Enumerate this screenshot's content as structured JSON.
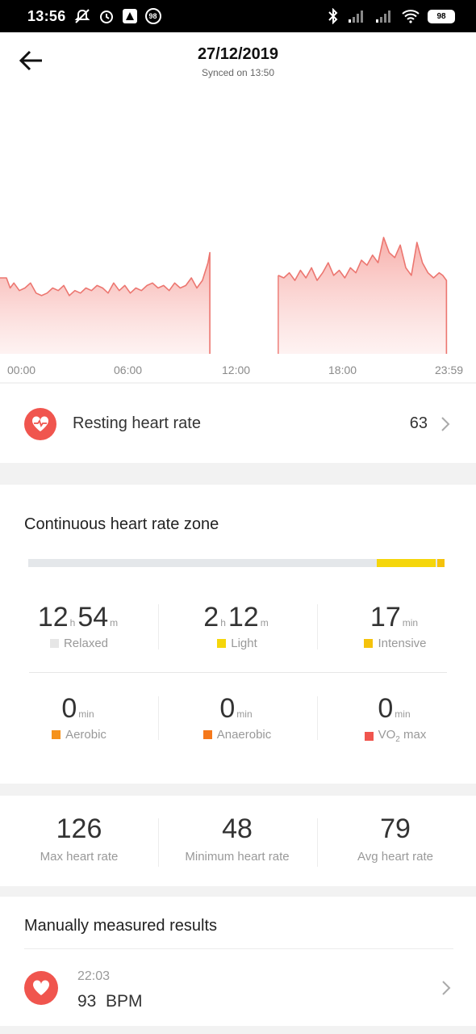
{
  "status_bar": {
    "time": "13:56",
    "notification_badge": "98",
    "battery": "98",
    "icons": [
      "muted-bell-icon",
      "alarm-icon",
      "app-icon",
      "bluetooth-icon",
      "signal-icon",
      "signal-icon",
      "wifi-icon",
      "battery-icon"
    ]
  },
  "header": {
    "title": "27/12/2019",
    "subtitle": "Synced on 13:50"
  },
  "chart_data": {
    "type": "area",
    "title": "",
    "xlabel": "",
    "ylabel": "",
    "x_tick_labels": [
      "00:00",
      "06:00",
      "12:00",
      "18:00",
      "23:59"
    ],
    "color": "#ec7670",
    "note_gap": "no data between ~11:10 and ~13:40",
    "series": [
      {
        "segment": 1,
        "x_hours": [
          0.0,
          0.2,
          0.4,
          0.7,
          1.0,
          1.3,
          1.6,
          1.9,
          2.2,
          2.5,
          2.8,
          3.1,
          3.4,
          3.7,
          4.0,
          4.3,
          4.6,
          4.9,
          5.2,
          5.5,
          5.8,
          6.1,
          6.4,
          6.7,
          7.0,
          7.3,
          7.6,
          7.9,
          8.2,
          8.5,
          8.8,
          9.1,
          9.4,
          9.7,
          10.0,
          10.3,
          10.6,
          10.9,
          11.0
        ],
        "bpm": [
          70,
          66,
          68,
          65,
          66,
          68,
          64,
          63,
          64,
          66,
          65,
          67,
          63,
          65,
          64,
          66,
          65,
          67,
          66,
          64,
          68,
          65,
          67,
          64,
          66,
          65,
          67,
          68,
          66,
          67,
          65,
          68,
          66,
          67,
          70,
          66,
          69,
          76,
          80
        ]
      },
      {
        "segment": 2,
        "x_hours": [
          14.7,
          15.0,
          15.3,
          15.6,
          15.9,
          16.2,
          16.5,
          16.8,
          17.1,
          17.4,
          17.7,
          18.0,
          18.3,
          18.6,
          18.9,
          19.2,
          19.5,
          19.8,
          20.1,
          20.4,
          20.7,
          21.0,
          21.3,
          21.6,
          21.9,
          22.2,
          22.5,
          22.8,
          23.1,
          23.4,
          23.6,
          23.8
        ],
        "bpm": [
          71,
          70,
          72,
          69,
          73,
          70,
          74,
          69,
          72,
          76,
          71,
          73,
          70,
          74,
          72,
          77,
          75,
          79,
          76,
          86,
          80,
          78,
          83,
          74,
          71,
          84,
          76,
          72,
          70,
          72,
          71,
          69
        ]
      }
    ]
  },
  "resting": {
    "label": "Resting heart rate",
    "value": "63"
  },
  "zones": {
    "title": "Continuous heart rate zone",
    "bar_fractions": {
      "relaxed": 0.84,
      "light": 0.14,
      "intensive": 0.02
    },
    "colors": {
      "relaxed": "#e6e6e6",
      "light": "#f5d60b",
      "intensive": "#f5c20b",
      "aerobic": "#f5921b",
      "anaerobic": "#f5781b",
      "vo2": "#f0554e"
    },
    "items": [
      {
        "v1": "12",
        "u1": "h",
        "v2": "54",
        "u2": "m",
        "label": "Relaxed"
      },
      {
        "v1": "2",
        "u1": "h",
        "v2": "12",
        "u2": "m",
        "label": "Light"
      },
      {
        "v1": "17",
        "u1": "min",
        "label": "Intensive"
      },
      {
        "v1": "0",
        "u1": "min",
        "label": "Aerobic"
      },
      {
        "v1": "0",
        "u1": "min",
        "label": "Anaerobic"
      },
      {
        "v1": "0",
        "u1": "min",
        "label_main": "VO",
        "label_sub": "2",
        "label_tail": " max"
      }
    ]
  },
  "stats": {
    "items": [
      {
        "value": "126",
        "label": "Max heart rate"
      },
      {
        "value": "48",
        "label": "Minimum heart rate"
      },
      {
        "value": "79",
        "label": "Avg heart rate"
      }
    ]
  },
  "manual": {
    "title": "Manually measured results",
    "time": "22:03",
    "value": "93  BPM"
  }
}
